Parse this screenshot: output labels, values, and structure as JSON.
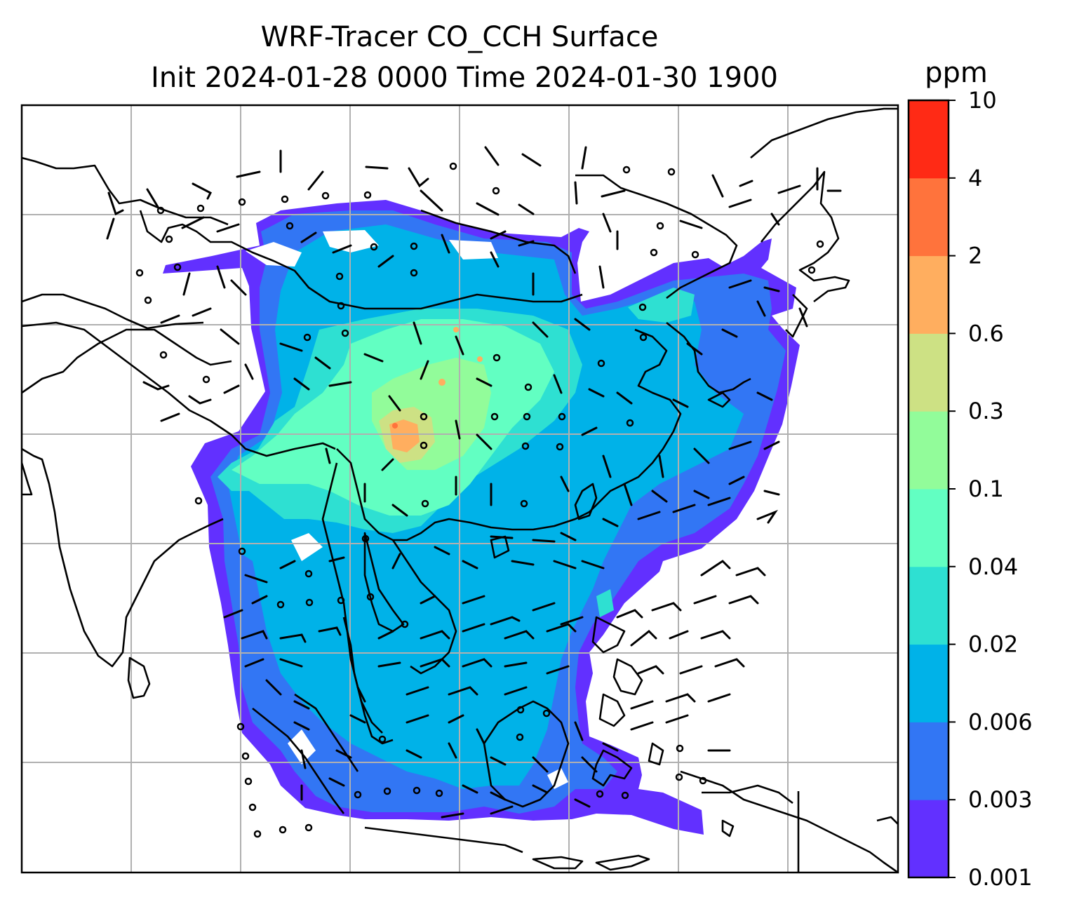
{
  "title_line1": "WRF-Tracer CO_CCH Surface",
  "title_line2": "Init 2024-01-28 0000 Time 2024-01-30 1900",
  "colorbar": {
    "unit": "ppm",
    "levels": [
      "0.001",
      "0.003",
      "0.006",
      "0.02",
      "0.04",
      "0.1",
      "0.3",
      "0.6",
      "2",
      "4",
      "10"
    ],
    "colors": [
      "#6230ff",
      "#3276f4",
      "#00b2e8",
      "#2ee0d2",
      "#62ffc2",
      "#92fc9a",
      "#cde184",
      "#ffae5f",
      "#ff733c",
      "#ff2a15"
    ]
  },
  "map_style": {
    "coastline_color": "#000000",
    "gridline_color": "#b0b0b0",
    "wind_barb_color": "#000000"
  }
}
